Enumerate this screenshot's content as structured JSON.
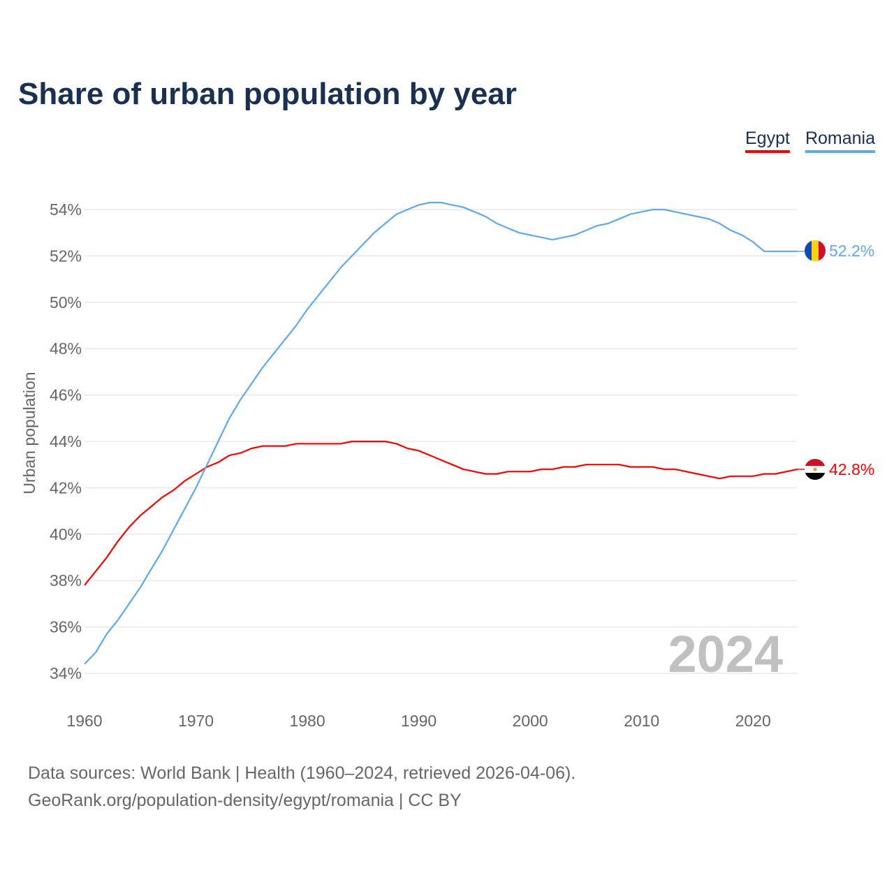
{
  "chart_data": {
    "type": "line",
    "title": "Share of urban population by year",
    "ylabel": "Urban population",
    "xlabel": "",
    "ylim": [
      34,
      54
    ],
    "xlim": [
      1960,
      2024
    ],
    "yticks": [
      "34%",
      "36%",
      "38%",
      "40%",
      "42%",
      "44%",
      "46%",
      "48%",
      "50%",
      "52%",
      "54%"
    ],
    "ytick_values": [
      34,
      36,
      38,
      40,
      42,
      44,
      46,
      48,
      50,
      52,
      54
    ],
    "xticks": [
      "1960",
      "1970",
      "1980",
      "1990",
      "2000",
      "2010",
      "2020"
    ],
    "xtick_values": [
      1960,
      1970,
      1980,
      1990,
      2000,
      2010,
      2020
    ],
    "grid": true,
    "legend_position": "top-right",
    "year_watermark": "2024",
    "x_start": 1960,
    "series": [
      {
        "name": "Egypt",
        "color": "#ff0000",
        "end_label": "42.8%",
        "values": [
          37.8,
          38.4,
          39.0,
          39.7,
          40.3,
          40.8,
          41.2,
          41.6,
          41.9,
          42.3,
          42.6,
          42.9,
          43.1,
          43.4,
          43.5,
          43.7,
          43.8,
          43.8,
          43.8,
          43.9,
          43.9,
          43.9,
          43.9,
          43.9,
          44.0,
          44.0,
          44.0,
          44.0,
          43.9,
          43.7,
          43.6,
          43.4,
          43.2,
          43.0,
          42.8,
          42.7,
          42.6,
          42.6,
          42.7,
          42.7,
          42.7,
          42.8,
          42.8,
          42.9,
          42.9,
          43.0,
          43.0,
          43.0,
          43.0,
          42.9,
          42.9,
          42.9,
          42.8,
          42.8,
          42.7,
          42.6,
          42.5,
          42.4,
          42.5,
          42.5,
          42.5,
          42.6,
          42.6,
          42.7,
          42.8
        ]
      },
      {
        "name": "Romania",
        "color": "#5ea8eb",
        "end_label": "52.2%",
        "values": [
          34.4,
          34.9,
          35.7,
          36.3,
          37.0,
          37.7,
          38.5,
          39.3,
          40.2,
          41.1,
          42.0,
          43.0,
          44.0,
          45.0,
          45.8,
          46.5,
          47.2,
          47.8,
          48.4,
          49.0,
          49.7,
          50.3,
          50.9,
          51.5,
          52.0,
          52.5,
          53.0,
          53.4,
          53.8,
          54.0,
          54.2,
          54.3,
          54.3,
          54.2,
          54.1,
          53.9,
          53.7,
          53.4,
          53.2,
          53.0,
          52.9,
          52.8,
          52.7,
          52.8,
          52.9,
          53.1,
          53.3,
          53.4,
          53.6,
          53.8,
          53.9,
          54.0,
          54.0,
          53.9,
          53.8,
          53.7,
          53.6,
          53.4,
          53.1,
          52.9,
          52.6,
          52.2,
          52.2,
          52.2,
          52.2
        ]
      }
    ]
  },
  "legend": {
    "egypt": "Egypt",
    "romania": "Romania"
  },
  "footer": {
    "line1": "Data sources: World Bank | Health (1960–2024, retrieved 2026-04-06).",
    "line2": "GeoRank.org/population-density/egypt/romania | CC BY"
  }
}
